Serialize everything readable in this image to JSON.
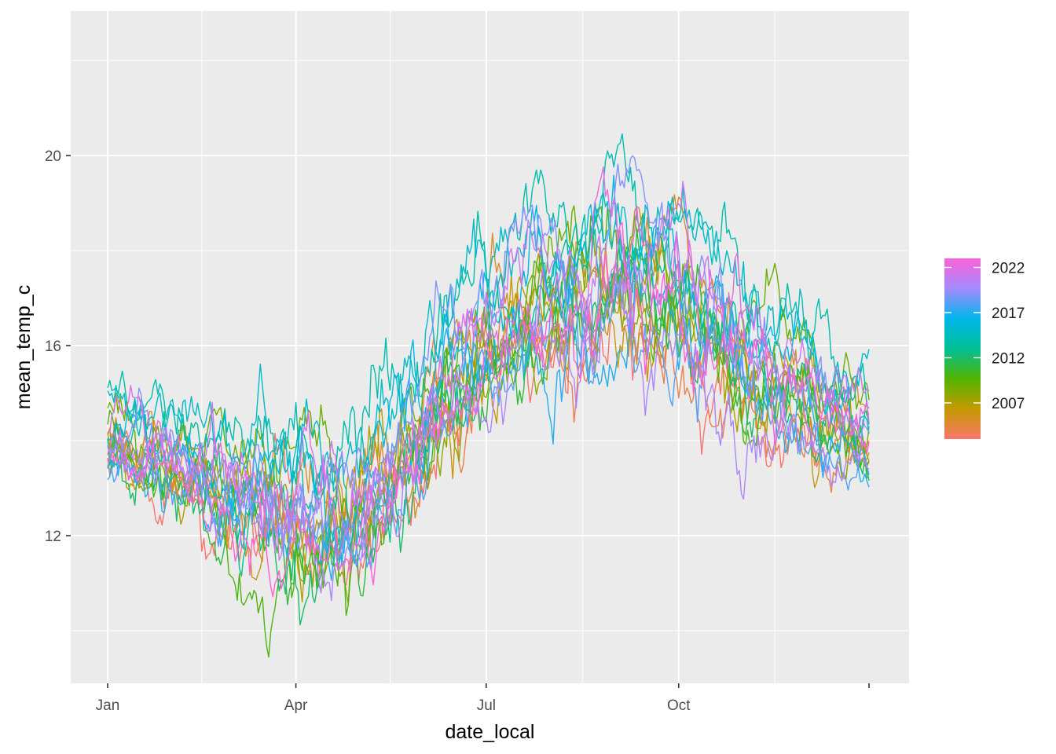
{
  "chart_data": {
    "type": "line",
    "xlabel": "date_local",
    "ylabel": "mean_temp_c",
    "x_axis": {
      "scale": "date (day of year, one cycle Jan–Dec)",
      "range": [
        "Jan 01",
        "Dec 31"
      ],
      "ticks": [
        {
          "label": "Jan",
          "day": 1
        },
        {
          "label": "Apr",
          "day": 91
        },
        {
          "label": "Jul",
          "day": 182
        },
        {
          "label": "Oct",
          "day": 274
        }
      ],
      "minor_ticks_day": [
        46,
        136,
        228,
        320
      ]
    },
    "y_axis": {
      "range": [
        9.0,
        22.8
      ],
      "ticks": [
        {
          "label": "12",
          "value": 12
        },
        {
          "label": "16",
          "value": 16
        },
        {
          "label": "20",
          "value": 20
        }
      ],
      "minor_ticks": [
        10,
        14,
        18,
        22
      ]
    },
    "grid": true,
    "panel_background": "#ebebeb",
    "legend": {
      "placement": "right",
      "type": "colorbar",
      "ticks": [
        "2022",
        "2017",
        "2012",
        "2007"
      ],
      "tick_years": [
        2022,
        2017,
        2012,
        2007
      ],
      "year_range": [
        2003,
        2023
      ],
      "colors_low_to_high": [
        "#f8766d",
        "#c49a00",
        "#53b400",
        "#00c094",
        "#00b6eb",
        "#a58aff",
        "#fb61d7"
      ]
    },
    "series_note": "one daily mean temperature line per year, 2003-2023",
    "seasonal_profile": [
      {
        "day": 1,
        "mean": 13.9,
        "spread": 1.0
      },
      {
        "day": 30,
        "mean": 13.6,
        "spread": 1.0
      },
      {
        "day": 60,
        "mean": 12.8,
        "spread": 1.3
      },
      {
        "day": 91,
        "mean": 12.3,
        "spread": 1.5
      },
      {
        "day": 121,
        "mean": 12.5,
        "spread": 1.5
      },
      {
        "day": 152,
        "mean": 14.3,
        "spread": 1.4
      },
      {
        "day": 182,
        "mean": 16.3,
        "spread": 1.4
      },
      {
        "day": 213,
        "mean": 16.8,
        "spread": 1.5
      },
      {
        "day": 244,
        "mean": 17.2,
        "spread": 1.6
      },
      {
        "day": 274,
        "mean": 16.9,
        "spread": 1.6
      },
      {
        "day": 305,
        "mean": 15.5,
        "spread": 1.5
      },
      {
        "day": 335,
        "mean": 14.7,
        "spread": 1.2
      },
      {
        "day": 365,
        "mean": 14.0,
        "spread": 1.0
      }
    ]
  }
}
